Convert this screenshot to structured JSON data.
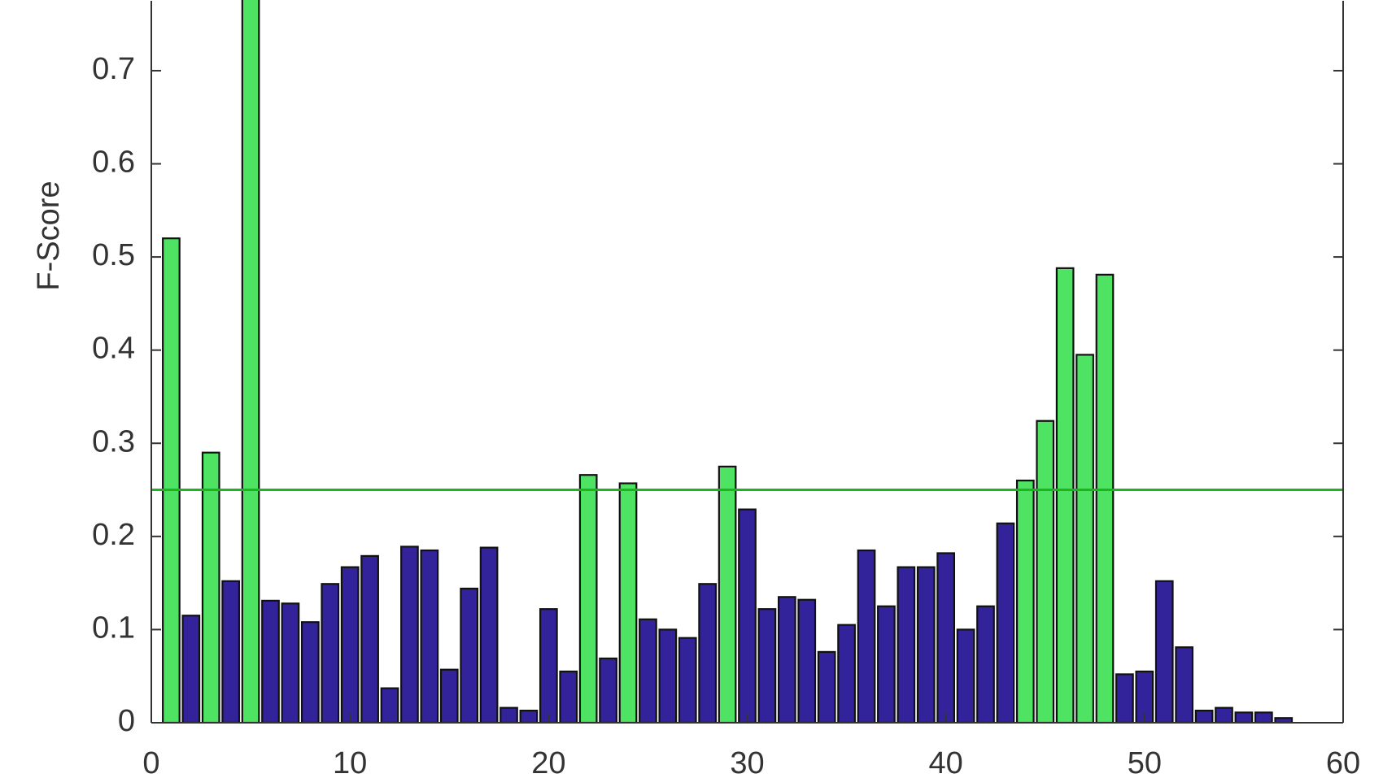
{
  "chart_data": {
    "type": "bar",
    "ylabel": "F-Score",
    "x": [
      1,
      2,
      3,
      4,
      5,
      6,
      7,
      8,
      9,
      10,
      11,
      12,
      13,
      14,
      15,
      16,
      17,
      18,
      19,
      20,
      21,
      22,
      23,
      24,
      25,
      26,
      27,
      28,
      29,
      30,
      31,
      32,
      33,
      34,
      35,
      36,
      37,
      38,
      39,
      40,
      41,
      42,
      43,
      44,
      45,
      46,
      47,
      48,
      49,
      50,
      51,
      52,
      53,
      54,
      55,
      56,
      57
    ],
    "values": [
      0.52,
      0.115,
      0.29,
      0.152,
      0.8,
      0.131,
      0.128,
      0.108,
      0.149,
      0.167,
      0.179,
      0.037,
      0.189,
      0.185,
      0.057,
      0.144,
      0.188,
      0.016,
      0.013,
      0.122,
      0.055,
      0.266,
      0.069,
      0.257,
      0.111,
      0.1,
      0.091,
      0.149,
      0.275,
      0.229,
      0.122,
      0.135,
      0.132,
      0.076,
      0.105,
      0.185,
      0.125,
      0.167,
      0.167,
      0.182,
      0.1,
      0.125,
      0.214,
      0.26,
      0.324,
      0.488,
      0.395,
      0.481,
      0.052,
      0.055,
      0.152,
      0.081,
      0.013,
      0.016,
      0.011,
      0.011,
      0.005
    ],
    "colors": [
      "#4ee362",
      "#33239a",
      "#4ee362",
      "#33239a",
      "#4ee362",
      "#33239a",
      "#33239a",
      "#33239a",
      "#33239a",
      "#33239a",
      "#33239a",
      "#33239a",
      "#33239a",
      "#33239a",
      "#33239a",
      "#33239a",
      "#33239a",
      "#33239a",
      "#33239a",
      "#33239a",
      "#33239a",
      "#4ee362",
      "#33239a",
      "#4ee362",
      "#33239a",
      "#33239a",
      "#33239a",
      "#33239a",
      "#4ee362",
      "#33239a",
      "#33239a",
      "#33239a",
      "#33239a",
      "#33239a",
      "#33239a",
      "#33239a",
      "#33239a",
      "#33239a",
      "#33239a",
      "#33239a",
      "#33239a",
      "#33239a",
      "#33239a",
      "#4ee362",
      "#4ee362",
      "#4ee362",
      "#4ee362",
      "#4ee362",
      "#33239a",
      "#33239a",
      "#33239a",
      "#33239a",
      "#33239a",
      "#33239a",
      "#33239a",
      "#33239a",
      "#33239a"
    ],
    "threshold": {
      "value": 0.25,
      "color": "#1eb41e"
    },
    "xlim": [
      0,
      60
    ],
    "xticks": [
      0,
      10,
      20,
      30,
      40,
      50,
      60
    ],
    "ylim": [
      0,
      0.775
    ],
    "yticks": [
      0,
      0.1,
      0.2,
      0.3,
      0.4,
      0.5,
      0.6,
      0.7
    ]
  }
}
